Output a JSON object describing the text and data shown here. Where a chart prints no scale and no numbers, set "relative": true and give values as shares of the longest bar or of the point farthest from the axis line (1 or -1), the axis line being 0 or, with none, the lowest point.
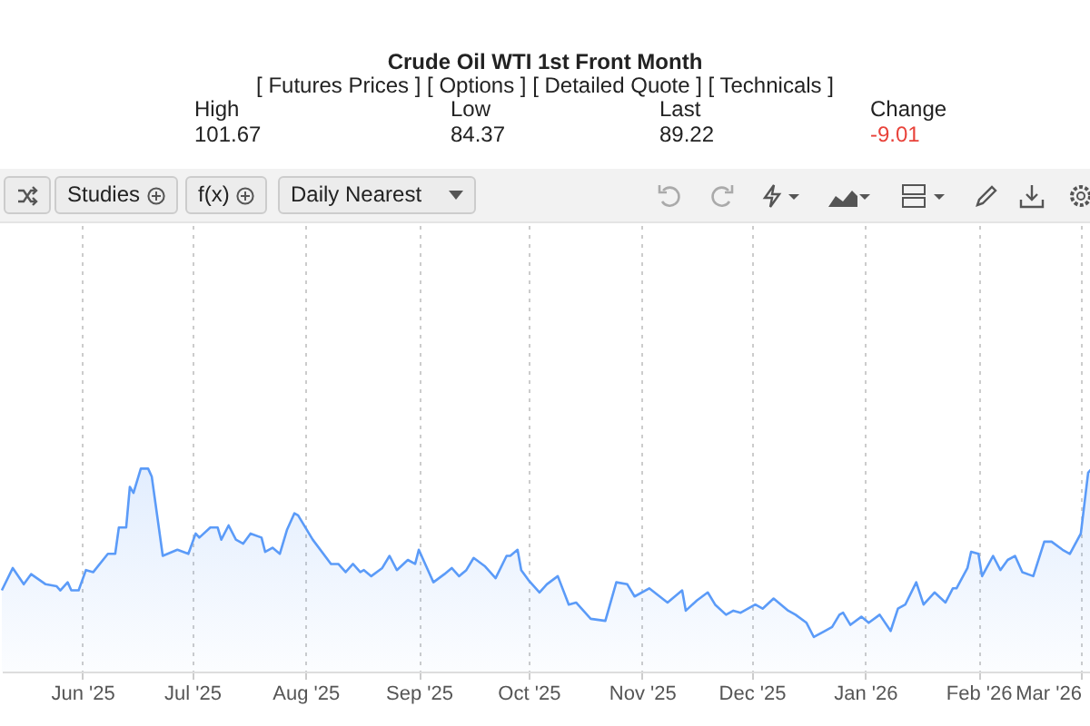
{
  "chart_data": {
    "type": "area",
    "title": "Crude Oil WTI 1st Front Month",
    "subtitle": "[ Futures Prices ] [ Options ] [ Detailed Quote ] [ Technicals ]",
    "annotations": [
      "High",
      "101.67",
      "Low",
      "84.37",
      "Last",
      "89.22",
      "Change",
      "-9.01",
      "Studies",
      "f(x)",
      "Daily Nearest"
    ],
    "relative": true,
    "grid": "x",
    "legend": false,
    "xlim": [
      "2025-05-10",
      "2026-03-04"
    ],
    "xticks": [
      {
        "value": "2025-06-01",
        "label": "Jun '25"
      },
      {
        "value": "2025-07-01",
        "label": "Jul '25"
      },
      {
        "value": "2025-08-01",
        "label": "Aug '25"
      },
      {
        "value": "2025-09-01",
        "label": "Sep '25"
      },
      {
        "value": "2025-10-01",
        "label": "Oct '25"
      },
      {
        "value": "2025-11-01",
        "label": "Nov '25"
      },
      {
        "value": "2025-12-01",
        "label": "Dec '25"
      },
      {
        "value": "2026-01-01",
        "label": "Jan '26"
      },
      {
        "value": "2026-02-01",
        "label": "Feb '26"
      },
      {
        "value": "2026-03-01",
        "label": "Mar '26"
      }
    ],
    "x": [
      "2025-05-10",
      "2025-05-13",
      "2025-05-16",
      "2025-05-18",
      "2025-05-22",
      "2025-05-25",
      "2025-05-26",
      "2025-05-28",
      "2025-05-29",
      "2025-05-31",
      "2025-06-02",
      "2025-06-04",
      "2025-06-08",
      "2025-06-10",
      "2025-06-11",
      "2025-06-13",
      "2025-06-14",
      "2025-06-15",
      "2025-06-17",
      "2025-06-19",
      "2025-06-20",
      "2025-06-23",
      "2025-06-27",
      "2025-06-30",
      "2025-07-02",
      "2025-07-03",
      "2025-07-06",
      "2025-07-08",
      "2025-07-09",
      "2025-07-11",
      "2025-07-13",
      "2025-07-15",
      "2025-07-17",
      "2025-07-20",
      "2025-07-21",
      "2025-07-23",
      "2025-07-25",
      "2025-07-27",
      "2025-07-29",
      "2025-07-30",
      "2025-08-03",
      "2025-08-08",
      "2025-08-10",
      "2025-08-12",
      "2025-08-14",
      "2025-08-16",
      "2025-08-17",
      "2025-08-19",
      "2025-08-22",
      "2025-08-24",
      "2025-08-26",
      "2025-08-29",
      "2025-08-31",
      "2025-09-01",
      "2025-09-03",
      "2025-09-05",
      "2025-09-08",
      "2025-09-10",
      "2025-09-12",
      "2025-09-14",
      "2025-09-16",
      "2025-09-19",
      "2025-09-22",
      "2025-09-25",
      "2025-09-26",
      "2025-09-28",
      "2025-09-29",
      "2025-10-01",
      "2025-10-04",
      "2025-10-06",
      "2025-10-09",
      "2025-10-12",
      "2025-10-14",
      "2025-10-18",
      "2025-10-22",
      "2025-10-25",
      "2025-10-28",
      "2025-10-30",
      "2025-11-03",
      "2025-11-08",
      "2025-11-12",
      "2025-11-13",
      "2025-11-16",
      "2025-11-19",
      "2025-11-21",
      "2025-11-24",
      "2025-11-26",
      "2025-11-28",
      "2025-12-02",
      "2025-12-04",
      "2025-12-07",
      "2025-12-11",
      "2025-12-13",
      "2025-12-16",
      "2025-12-18",
      "2025-12-21",
      "2025-12-23",
      "2025-12-25",
      "2025-12-26",
      "2025-12-28",
      "2025-12-31",
      "2026-01-02",
      "2026-01-05",
      "2026-01-08",
      "2026-01-10",
      "2026-01-12",
      "2026-01-15",
      "2026-01-17",
      "2026-01-20",
      "2026-01-23",
      "2026-01-25",
      "2026-01-26",
      "2026-01-29",
      "2026-01-30",
      "2026-02-01",
      "2026-02-02",
      "2026-02-05",
      "2026-02-07",
      "2026-02-09",
      "2026-02-11",
      "2026-02-13",
      "2026-02-16",
      "2026-02-19",
      "2026-02-21",
      "2026-02-24",
      "2026-02-26",
      "2026-03-01",
      "2026-03-03",
      "2026-03-04"
    ],
    "series": [
      {
        "color": "#5b9bf8",
        "values": [
          0.4,
          0.51,
          0.43,
          0.48,
          0.43,
          0.42,
          0.4,
          0.44,
          0.4,
          0.4,
          0.5,
          0.49,
          0.58,
          0.58,
          0.71,
          0.71,
          0.91,
          0.88,
          1.0,
          1.0,
          0.96,
          0.57,
          0.6,
          0.58,
          0.68,
          0.66,
          0.71,
          0.71,
          0.65,
          0.72,
          0.65,
          0.63,
          0.68,
          0.66,
          0.59,
          0.61,
          0.58,
          0.7,
          0.78,
          0.77,
          0.65,
          0.53,
          0.53,
          0.49,
          0.53,
          0.49,
          0.5,
          0.47,
          0.51,
          0.57,
          0.5,
          0.55,
          0.53,
          0.6,
          0.52,
          0.44,
          0.48,
          0.51,
          0.47,
          0.5,
          0.56,
          0.52,
          0.46,
          0.57,
          0.57,
          0.6,
          0.5,
          0.45,
          0.39,
          0.43,
          0.47,
          0.33,
          0.34,
          0.26,
          0.25,
          0.44,
          0.43,
          0.37,
          0.41,
          0.34,
          0.4,
          0.3,
          0.35,
          0.39,
          0.33,
          0.28,
          0.3,
          0.29,
          0.33,
          0.31,
          0.36,
          0.3,
          0.28,
          0.24,
          0.17,
          0.2,
          0.22,
          0.28,
          0.29,
          0.23,
          0.27,
          0.24,
          0.28,
          0.2,
          0.31,
          0.33,
          0.44,
          0.33,
          0.39,
          0.34,
          0.41,
          0.41,
          0.51,
          0.59,
          0.58,
          0.47,
          0.57,
          0.5,
          0.55,
          0.57,
          0.49,
          0.47,
          0.64,
          0.64,
          0.6,
          0.58,
          0.68,
          0.98,
          1.0
        ]
      }
    ]
  }
}
